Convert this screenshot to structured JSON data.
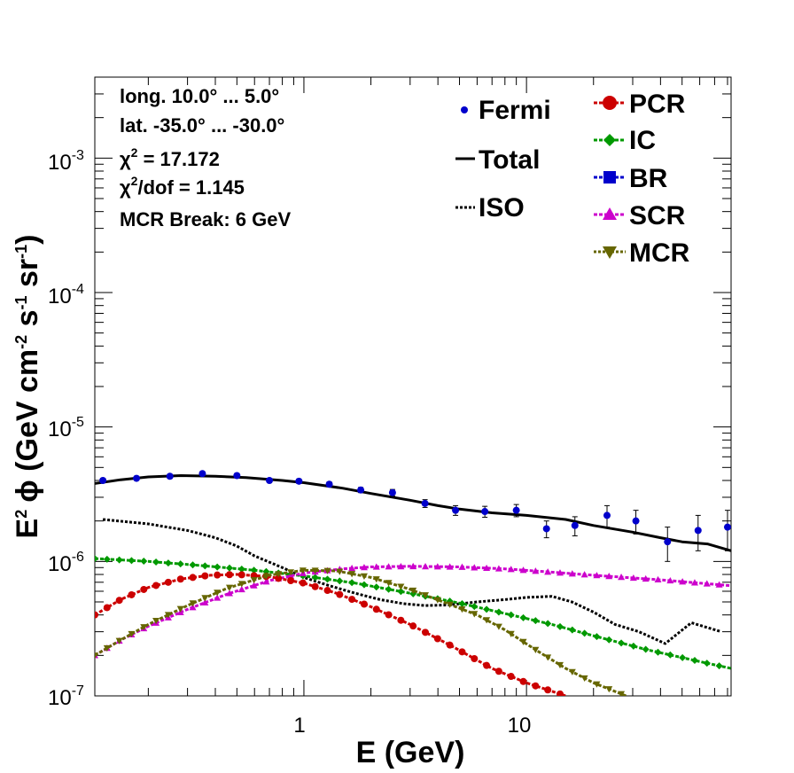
{
  "chart_data": {
    "type": "line",
    "x_scale": "log",
    "y_scale": "log",
    "xlim": [
      0.115,
      83
    ],
    "ylim": [
      1e-07,
      0.004
    ],
    "xlabel": "E (GeV)",
    "ylabel": "E² ϕ (GeV cm⁻² s⁻¹ sr⁻¹)",
    "ylabel_parts": {
      "e": "E",
      "e_exp": "2",
      "phi": "ϕ (GeV cm",
      "cm_exp": "-2",
      "s": " s",
      "s_exp": "-1",
      "sr": " sr",
      "sr_exp": "-1",
      "close": ")"
    },
    "grid": false,
    "x_ticks": [
      {
        "value": 1,
        "label": "1"
      },
      {
        "value": 10,
        "label": "10"
      }
    ],
    "y_ticks": [
      {
        "value": 1e-07,
        "base": "10",
        "exp": "-7"
      },
      {
        "value": 1e-06,
        "base": "10",
        "exp": "-6"
      },
      {
        "value": 1e-05,
        "base": "10",
        "exp": "-5"
      },
      {
        "value": 0.0001,
        "base": "10",
        "exp": "-4"
      },
      {
        "value": 0.001,
        "base": "10",
        "exp": "-3"
      }
    ],
    "annotations": {
      "longitude": "long. 10.0° ... 5.0°",
      "latitude": "lat. -35.0° ... -30.0°",
      "chi2_sym": "χ",
      "chi2_exp": "2",
      "chi2_value": " = 17.172",
      "chi2dof_value": "/dof = 1.145",
      "mcr_break": "MCR Break:  6 GeV"
    },
    "legend_position": "top-right",
    "legend_left": [
      {
        "name": "Fermi",
        "style": "points",
        "color": "#0000cc"
      },
      {
        "name": "Total",
        "style": "solid",
        "color": "#000000"
      },
      {
        "name": "ISO",
        "style": "dotted",
        "color": "#000000"
      }
    ],
    "legend_right": [
      {
        "name": "PCR",
        "marker": "circle",
        "color": "#cc0000"
      },
      {
        "name": "IC",
        "marker": "diamond",
        "color": "#009900"
      },
      {
        "name": "BR",
        "marker": "square",
        "color": "#0000cc"
      },
      {
        "name": "SCR",
        "marker": "triangle-up",
        "color": "#cc00cc"
      },
      {
        "name": "MCR",
        "marker": "triangle-down",
        "color": "#666600"
      }
    ],
    "fermi": {
      "name": "Fermi",
      "color": "#0000cc",
      "points": [
        {
          "x": 0.125,
          "y": 4e-06,
          "err": 1.5e-07
        },
        {
          "x": 0.177,
          "y": 4.15e-06,
          "err": 1.5e-07
        },
        {
          "x": 0.25,
          "y": 4.3e-06,
          "err": 1.5e-07
        },
        {
          "x": 0.35,
          "y": 4.5e-06,
          "err": 1.5e-07
        },
        {
          "x": 0.5,
          "y": 4.35e-06,
          "err": 1.5e-07
        },
        {
          "x": 0.7,
          "y": 4e-06,
          "err": 1.5e-07
        },
        {
          "x": 0.95,
          "y": 3.95e-06,
          "err": 1.5e-07
        },
        {
          "x": 1.3,
          "y": 3.75e-06,
          "err": 1.5e-07
        },
        {
          "x": 1.8,
          "y": 3.4e-06,
          "err": 1.5e-07
        },
        {
          "x": 2.5,
          "y": 3.25e-06,
          "err": 1.8e-07
        },
        {
          "x": 3.5,
          "y": 2.7e-06,
          "err": 1.8e-07
        },
        {
          "x": 4.8,
          "y": 2.4e-06,
          "err": 2e-07
        },
        {
          "x": 6.5,
          "y": 2.35e-06,
          "err": 2.2e-07
        },
        {
          "x": 9.0,
          "y": 2.4e-06,
          "err": 2.5e-07
        },
        {
          "x": 12.3,
          "y": 1.75e-06,
          "err": 2.5e-07
        },
        {
          "x": 16.5,
          "y": 1.85e-06,
          "err": 3e-07
        },
        {
          "x": 23.0,
          "y": 2.2e-06,
          "err": 4e-07
        },
        {
          "x": 31.0,
          "y": 2e-06,
          "err": 4e-07
        },
        {
          "x": 43.0,
          "y": 1.4e-06,
          "err": 4e-07
        },
        {
          "x": 59.0,
          "y": 1.7e-06,
          "err": 5e-07
        },
        {
          "x": 80.0,
          "y": 1.8e-06,
          "err": 6e-07
        }
      ]
    },
    "series": [
      {
        "name": "Total",
        "color": "#000000",
        "style": "solid",
        "marker": "none",
        "x": [
          0.115,
          0.15,
          0.2,
          0.28,
          0.4,
          0.55,
          0.8,
          1.0,
          1.5,
          2.0,
          3.0,
          4.0,
          5.0,
          7.0,
          10.0,
          15.0,
          20.0,
          30.0,
          40.0,
          50.0,
          65.0,
          83.0
        ],
        "y": [
          3.8e-06,
          4.05e-06,
          4.25e-06,
          4.35e-06,
          4.3e-06,
          4.2e-06,
          4e-06,
          3.85e-06,
          3.5e-06,
          3.2e-06,
          2.85e-06,
          2.6e-06,
          2.45e-06,
          2.3e-06,
          2.2e-06,
          2.05e-06,
          1.85e-06,
          1.65e-06,
          1.5e-06,
          1.4e-06,
          1.35e-06,
          1.2e-06
        ]
      },
      {
        "name": "ISO",
        "color": "#000000",
        "style": "dotted",
        "marker": "none",
        "x": [
          0.125,
          0.2,
          0.3,
          0.4,
          0.5,
          0.6,
          0.8,
          1.0,
          1.3,
          1.7,
          2.2,
          2.8,
          3.5,
          4.5,
          6.0,
          8.0,
          10.0,
          13.0,
          16.0,
          20.0,
          25.0,
          32.0,
          42.0,
          55.0,
          75.0
        ],
        "y": [
          2.05e-06,
          1.9e-06,
          1.7e-06,
          1.5e-06,
          1.3e-06,
          1.1e-06,
          9e-07,
          7.6e-07,
          6.6e-07,
          5.8e-07,
          5.2e-07,
          4.85e-07,
          4.7e-07,
          4.75e-07,
          5e-07,
          5.2e-07,
          5.4e-07,
          5.5e-07,
          5e-07,
          4.2e-07,
          3.4e-07,
          3e-07,
          2.45e-07,
          3.5e-07,
          3e-07
        ]
      },
      {
        "name": "IC",
        "color": "#009900",
        "style": "dashed",
        "marker": "diamond",
        "x": [
          0.115,
          0.2,
          0.35,
          0.6,
          1.0,
          1.7,
          3.0,
          5.0,
          8.0,
          13.0,
          20.0,
          35.0,
          60.0,
          83.0
        ],
        "y": [
          1.05e-06,
          1e-06,
          9.3e-07,
          8.6e-07,
          7.8e-07,
          6.9e-07,
          5.8e-07,
          4.9e-07,
          4.1e-07,
          3.4e-07,
          2.8e-07,
          2.2e-07,
          1.8e-07,
          1.6e-07
        ]
      },
      {
        "name": "SCR",
        "color": "#cc00cc",
        "style": "dashed",
        "marker": "triangle-up",
        "x": [
          0.115,
          0.15,
          0.2,
          0.3,
          0.45,
          0.7,
          1.0,
          1.5,
          2.0,
          3.0,
          5.0,
          8.0,
          12.0,
          20.0,
          40.0,
          83.0
        ],
        "y": [
          2e-07,
          2.6e-07,
          3.3e-07,
          4.4e-07,
          5.7e-07,
          7.2e-07,
          8.2e-07,
          8.8e-07,
          9.1e-07,
          9.2e-07,
          9.1e-07,
          8.8e-07,
          8.4e-07,
          7.9e-07,
          7.3e-07,
          6.6e-07
        ]
      },
      {
        "name": "PCR",
        "color": "#cc0000",
        "style": "dashed",
        "marker": "circle",
        "x": [
          0.115,
          0.15,
          0.2,
          0.28,
          0.38,
          0.5,
          0.7,
          1.0,
          1.4,
          2.0,
          3.0,
          4.5,
          7.0,
          10.0,
          15.0
        ],
        "y": [
          4e-07,
          5.2e-07,
          6.4e-07,
          7.4e-07,
          7.9e-07,
          8e-07,
          7.7e-07,
          6.9e-07,
          5.8e-07,
          4.6e-07,
          3.4e-07,
          2.4e-07,
          1.6e-07,
          1.25e-07,
          1e-07
        ]
      },
      {
        "name": "MCR",
        "color": "#666600",
        "style": "dashed",
        "marker": "triangle-down",
        "x": [
          0.115,
          0.15,
          0.2,
          0.3,
          0.45,
          0.7,
          1.0,
          1.4,
          2.0,
          3.0,
          4.5,
          6.0,
          8.0,
          11.0,
          15.0,
          20.0,
          28.0
        ],
        "y": [
          2e-07,
          2.6e-07,
          3.4e-07,
          4.7e-07,
          6.3e-07,
          7.9e-07,
          8.6e-07,
          8.5e-07,
          7.6e-07,
          6.2e-07,
          4.8e-07,
          4e-07,
          3.1e-07,
          2.2e-07,
          1.6e-07,
          1.25e-07,
          1e-07
        ]
      }
    ]
  }
}
